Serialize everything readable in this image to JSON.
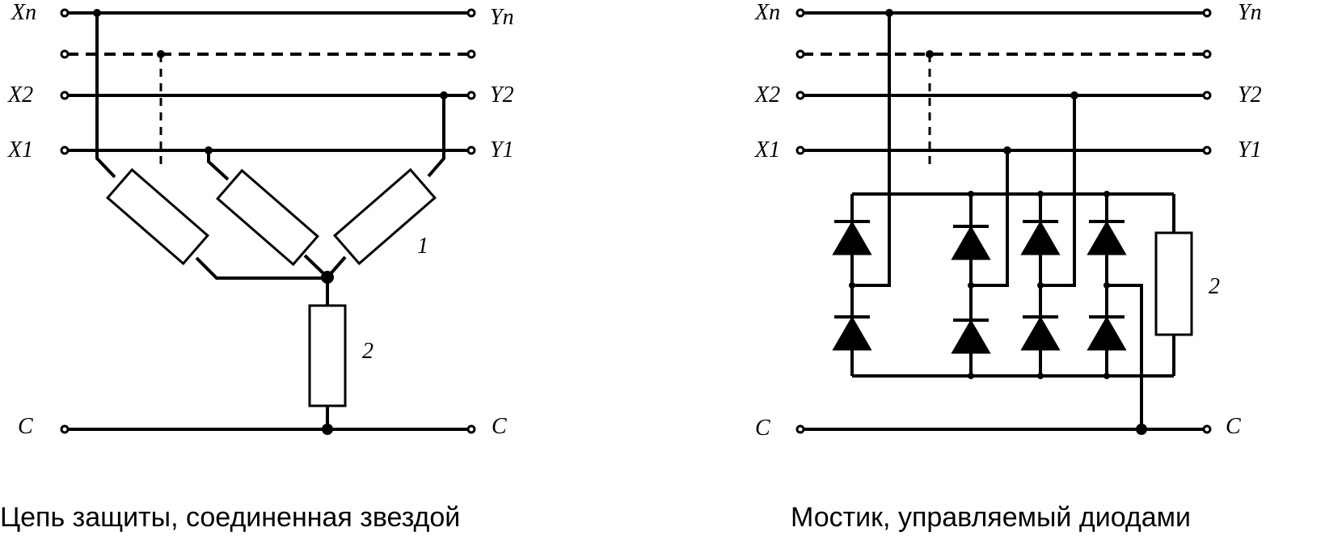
{
  "left_diagram": {
    "labels": {
      "xn": "Xn",
      "yn": "Yn",
      "x2": "X2",
      "y2": "Y2",
      "x1": "X1",
      "y1": "Y1",
      "c_left": "C",
      "c_right": "C",
      "resistor_group": "1",
      "resistor_common": "2"
    },
    "caption": "Цепь защиты, соединенная звездой"
  },
  "right_diagram": {
    "labels": {
      "xn": "Xn",
      "yn": "Yn",
      "x2": "X2",
      "y2": "Y2",
      "x1": "X1",
      "y1": "Y1",
      "c_left": "C",
      "c_right": "C",
      "resistor": "2"
    },
    "caption": "Мостик, управляемый диодами"
  }
}
